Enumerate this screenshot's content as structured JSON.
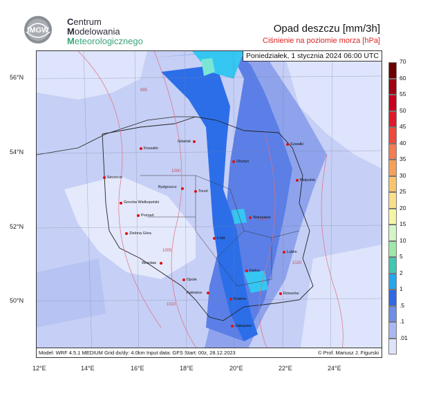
{
  "header": {
    "logo_text": "IMGW",
    "org": [
      {
        "init": "C",
        "rest": "entrum"
      },
      {
        "init": "M",
        "rest": "odelowania"
      },
      {
        "init": "M",
        "rest": "eteorologicznego"
      }
    ],
    "title": "Opad deszczu [mm/3h]",
    "subtitle": "Ciśnienie na poziomie morza [hPa]"
  },
  "map": {
    "datetime": "Poniedziałek, 1 stycznia 2024 06:00 UTC",
    "footer_left": "Model: WRF 4.5.1 MEDIUM   Grid dx/dy: 4.0km   Input data: GFS   Start: 00z, 28.12.2023",
    "footer_right": "© Prof. Mariusz J. Figurski",
    "lat_labels": [
      "56°N",
      "54°N",
      "52°N",
      "50°N"
    ],
    "lon_labels": [
      "12°E",
      "14°E",
      "16°E",
      "18°E",
      "20°E",
      "22°E",
      "24°E"
    ],
    "cities": [
      {
        "name": "Gdańsk"
      },
      {
        "name": "Koszalin"
      },
      {
        "name": "Suwałki"
      },
      {
        "name": "Olsztyn"
      },
      {
        "name": "Szczecin"
      },
      {
        "name": "Białystok"
      },
      {
        "name": "Bydgoszcz"
      },
      {
        "name": "Toruń"
      },
      {
        "name": "Gorzów Wielkopolski"
      },
      {
        "name": "Poznań"
      },
      {
        "name": "Warszawa"
      },
      {
        "name": "Zielona Góra"
      },
      {
        "name": "Łódź"
      },
      {
        "name": "Lublin"
      },
      {
        "name": "Wrocław"
      },
      {
        "name": "Kielce"
      },
      {
        "name": "Opole"
      },
      {
        "name": "Katowice"
      },
      {
        "name": "Kraków"
      },
      {
        "name": "Rzeszów"
      },
      {
        "name": "Zakopane"
      }
    ],
    "isobar_labels": [
      "995",
      "1000",
      "1005",
      "1010",
      "1015",
      "1020"
    ],
    "colors": {
      "background": "#c6cff5",
      "light": "#dde4fb",
      "medium": "#8ea3ec",
      "blue": "#5b7fe6",
      "strong": "#2c6ee8",
      "cyan": "#35c6f2",
      "isobar": "#e07080",
      "city_dot": "#e01010"
    }
  },
  "legend": {
    "labels": [
      "70",
      "60",
      "55",
      "50",
      "45",
      "40",
      "35",
      "30",
      "25",
      "20",
      "15",
      "10",
      "5",
      "2",
      "1",
      ".5",
      ".1",
      ".01"
    ],
    "colors": [
      "#6e0000",
      "#a00010",
      "#c8001e",
      "#e01a2a",
      "#f04a3c",
      "#f47c50",
      "#f6a05a",
      "#f8c46c",
      "#f9e08a",
      "#f4f6a6",
      "#d4f5c4",
      "#9de8a8",
      "#3fc8b4",
      "#22a8ee",
      "#2e6ae6",
      "#6f8ee8",
      "#a8b8f2",
      "#dde4fa"
    ]
  }
}
